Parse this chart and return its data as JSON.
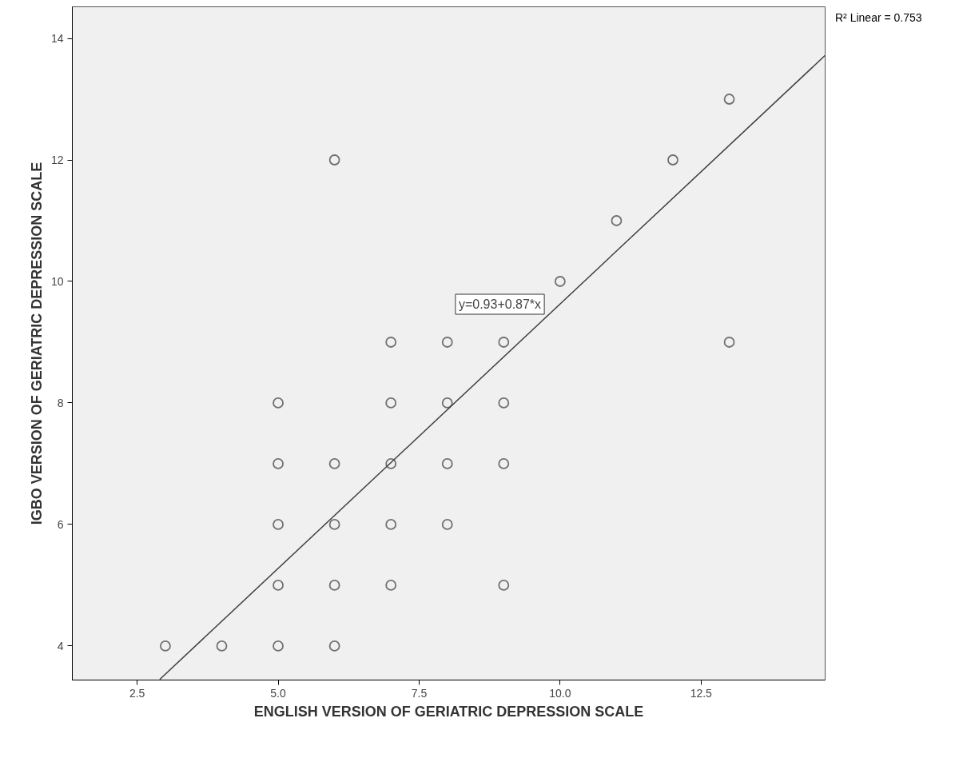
{
  "chart_data": {
    "type": "scatter",
    "xlabel": "ENGLISH VERSION OF GERIATRIC DEPRESSION SCALE",
    "ylabel": "IGBO VERSION OF GERIATRIC DEPRESSION SCALE",
    "xlim": [
      1.35,
      14.7
    ],
    "ylim": [
      3.44,
      14.52
    ],
    "xticks": [
      {
        "value": 2.5,
        "label": "2.5"
      },
      {
        "value": 5,
        "label": "5.0"
      },
      {
        "value": 7.5,
        "label": "7.5"
      },
      {
        "value": 10,
        "label": "10.0"
      },
      {
        "value": 12.5,
        "label": "12.5"
      }
    ],
    "yticks": [
      4,
      6,
      8,
      10,
      12,
      14
    ],
    "grid": false,
    "series": [
      {
        "marker": "circle",
        "color": "#707070",
        "x": [
          3,
          4,
          5,
          6,
          5,
          6,
          7,
          9,
          5,
          6,
          7,
          8,
          5,
          6,
          7,
          8,
          9,
          5,
          7,
          8,
          9,
          7,
          8,
          9,
          10,
          11,
          12,
          6,
          13,
          13
        ],
        "values": [
          4,
          4,
          4,
          4,
          5,
          5,
          5,
          5,
          6,
          6,
          6,
          6,
          7,
          7,
          7,
          7,
          7,
          8,
          8,
          8,
          8,
          9,
          9,
          9,
          10,
          11,
          12,
          12,
          13,
          9
        ]
      },
      {
        "type": "line",
        "color": "#404040",
        "x": [
          2.9,
          14.7
        ],
        "values": [
          3.45,
          13.72
        ]
      }
    ],
    "annotations": [
      "y=0.93+0.87*x",
      "R² Linear = 0.753"
    ]
  }
}
